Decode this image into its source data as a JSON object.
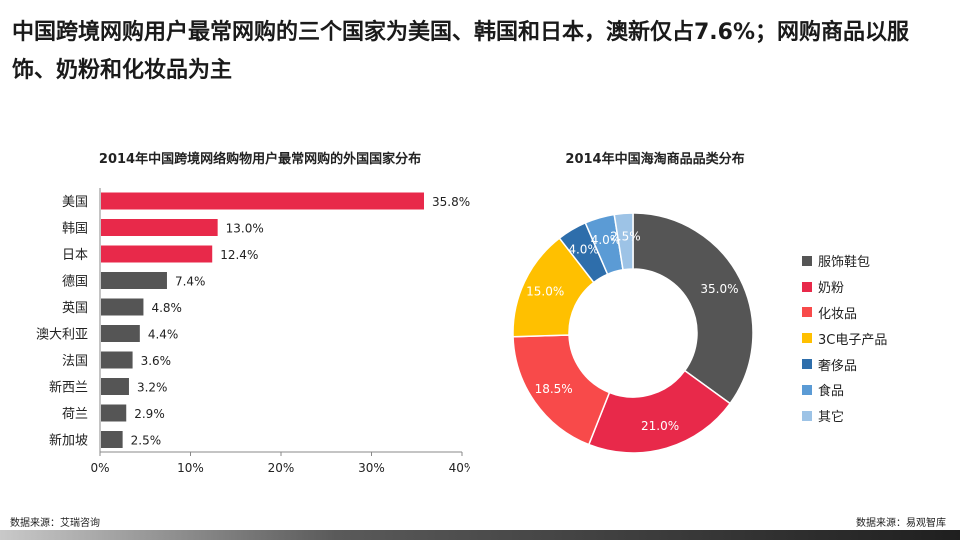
{
  "headline": "中国跨境网购用户最常网购的三个国家为美国、韩国和日本，澳新仅占7.6%；网购商品以服饰、奶粉和化妆品为主",
  "sources": {
    "left": "数据来源：艾瑞咨询",
    "right": "数据来源：易观智库"
  },
  "chart_data": [
    {
      "type": "bar",
      "orientation": "horizontal",
      "title": "2014年中国跨境网络购物用户最常网购的外国国家分布",
      "categories": [
        "美国",
        "韩国",
        "日本",
        "德国",
        "英国",
        "澳大利亚",
        "法国",
        "新西兰",
        "荷兰",
        "新加坡"
      ],
      "values": [
        35.8,
        13.0,
        12.4,
        7.4,
        4.8,
        4.4,
        3.6,
        3.2,
        2.9,
        2.5
      ],
      "value_labels": [
        "35.8%",
        "13.0%",
        "12.4%",
        "7.4%",
        "4.8%",
        "4.4%",
        "3.6%",
        "3.2%",
        "2.9%",
        "2.5%"
      ],
      "colors": [
        "#e8294a",
        "#e8294a",
        "#e8294a",
        "#555555",
        "#555555",
        "#555555",
        "#555555",
        "#555555",
        "#555555",
        "#555555"
      ],
      "xlim": [
        0,
        40
      ],
      "xticks": [
        "0%",
        "10%",
        "20%",
        "30%",
        "40%"
      ],
      "grid": false
    },
    {
      "type": "pie",
      "donut": true,
      "title": "2014年中国海淘商品品类分布",
      "labels": [
        "服饰鞋包",
        "奶粉",
        "化妆品",
        "3C电子产品",
        "奢侈品",
        "食品",
        "其它"
      ],
      "values": [
        35.0,
        21.0,
        18.5,
        15.0,
        4.0,
        4.0,
        2.5
      ],
      "value_labels": [
        "35.0%",
        "21.0%",
        "18.5%",
        "15.0%",
        "4.0%",
        "4.0%",
        "2.5%"
      ],
      "colors": [
        "#555555",
        "#e8294a",
        "#f84a4a",
        "#ffc000",
        "#2e6eab",
        "#5b9bd5",
        "#9dc3e6"
      ],
      "legend_position": "right"
    }
  ]
}
